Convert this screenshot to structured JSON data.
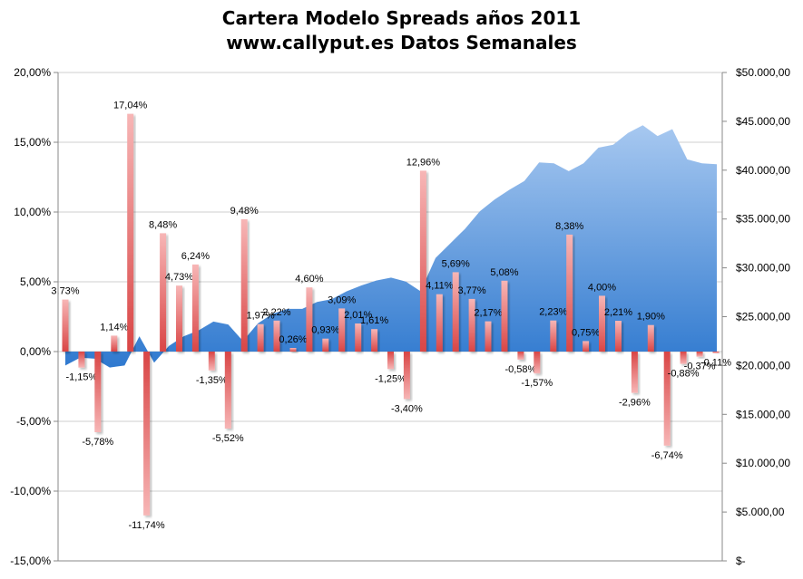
{
  "chart_data": {
    "type": "bar",
    "title": "Cartera Modelo Spreads años 2011",
    "subtitle": "www.callyput.es Datos Semanales",
    "y_left": {
      "ticks": [
        "20,00%",
        "15,00%",
        "10,00%",
        "5,00%",
        "0,00%",
        "-5,00%",
        "-10,00%",
        "-15,00%"
      ],
      "range": [
        -15,
        20
      ]
    },
    "y_right": {
      "ticks": [
        "$50.000,00",
        "$45.000,00",
        "$40.000,00",
        "$35.000,00",
        "$30.000,00",
        "$25.000,00",
        "$20.000,00",
        "$15.000,00",
        "$10.000,00",
        "$5.000,00",
        "$-"
      ],
      "range": [
        0,
        50000
      ]
    },
    "grid": true,
    "series": [
      {
        "type": "bar",
        "values": [
          3.73,
          -1.15,
          -5.78,
          1.14,
          17.04,
          -11.74,
          8.48,
          4.73,
          6.24,
          -1.35,
          -5.52,
          9.48,
          1.97,
          2.22,
          0.26,
          4.6,
          0.93,
          3.09,
          2.01,
          1.61,
          -1.25,
          -3.4,
          12.96,
          4.11,
          5.69,
          3.77,
          2.17,
          5.08,
          -0.58,
          -1.57,
          2.23,
          8.38,
          0.75,
          4.0,
          2.21,
          -2.96,
          1.9,
          -6.74,
          -0.88,
          -0.37,
          -0.11
        ],
        "labels": [
          "3,73%",
          "-1,15%",
          "-5,78%",
          "1,14%",
          "17,04%",
          "-11,74%",
          "8,48%",
          "4,73%",
          "6,24%",
          "-1,35%",
          "-5,52%",
          "9,48%",
          "1,97%",
          "2,22%",
          "0,26%",
          "4,60%",
          "0,93%",
          "3,09%",
          "2,01%",
          "1,61%",
          "-1,25%",
          "-3,40%",
          "12,96%",
          "4,11%",
          "5,69%",
          "3,77%",
          "2,17%",
          "5,08%",
          "-0,58%",
          "-1,57%",
          "2,23%",
          "8,38%",
          "0,75%",
          "4,00%",
          "2,21%",
          "-2,96%",
          "1,90%",
          "-6,74%",
          "-0,88%",
          "-0,37%",
          "-0,11%"
        ]
      },
      {
        "type": "area",
        "axis": "right",
        "values": [
          20000,
          20800,
          20700,
          19800,
          20000,
          23000,
          20300,
          22000,
          23000,
          23600,
          24500,
          24200,
          22500,
          24300,
          25300,
          25800,
          25800,
          26500,
          26800,
          27600,
          28200,
          28700,
          29000,
          28600,
          27600,
          31000,
          32500,
          34000,
          35800,
          37000,
          38000,
          38900,
          40800,
          40700,
          39900,
          40700,
          42300,
          42600,
          43800,
          44600,
          43500,
          44200,
          41100,
          40700,
          40600
        ]
      }
    ],
    "colors": {
      "bar_top": "#f7b6b6",
      "bar_bottom": "#d94545",
      "area_top": "#a7c8f0",
      "area_bottom": "#2f79cf",
      "grid": "#cfcfcf"
    }
  }
}
